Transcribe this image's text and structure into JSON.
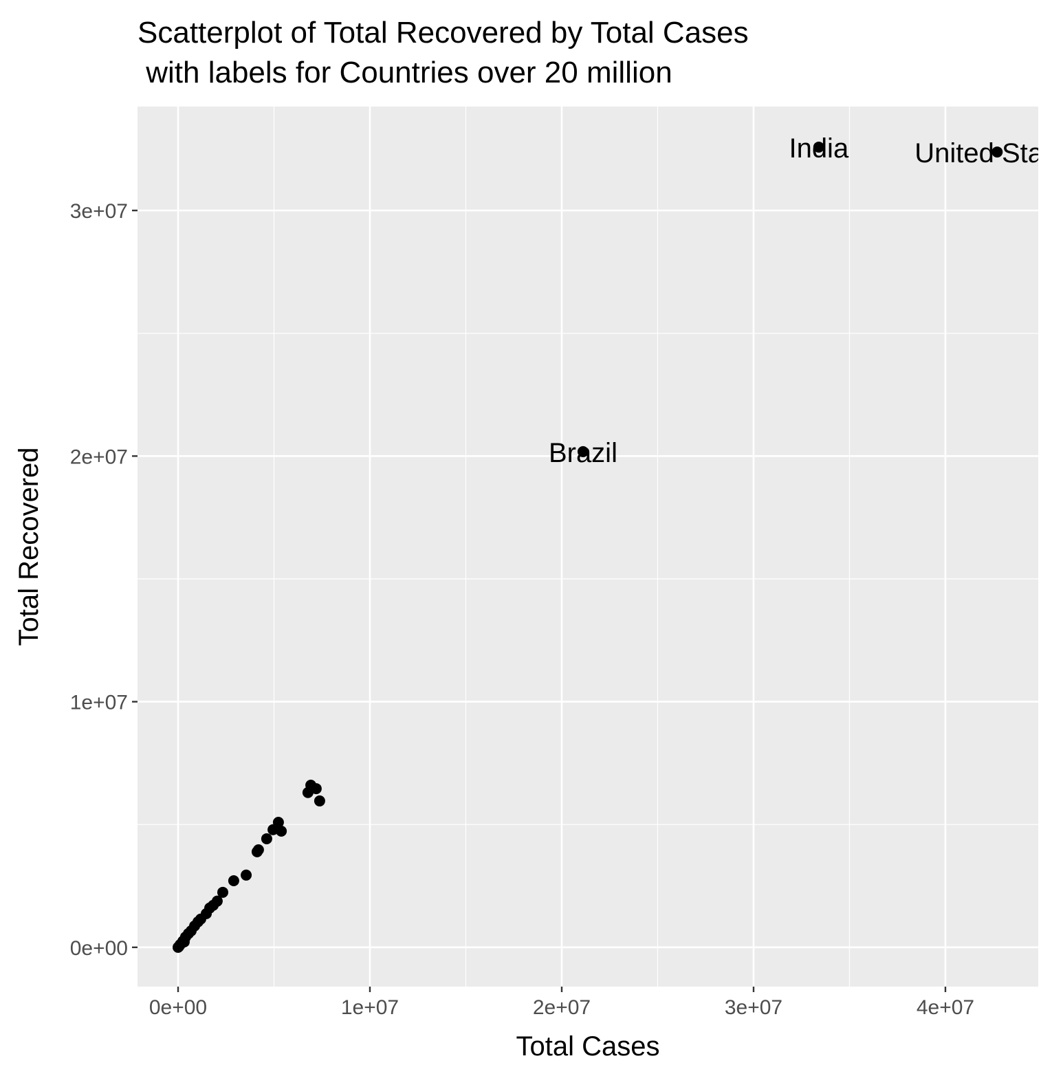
{
  "chart_data": {
    "type": "scatter",
    "title_lines": [
      "Scatterplot of Total Recovered by Total Cases",
      " with labels for Countries over 20 million"
    ],
    "x_label": "Total Cases",
    "y_label": "Total Recovered",
    "color": "#000000",
    "grid": true,
    "xlim": [
      -2115000,
      44840000
    ],
    "ylim": [
      -1600000,
      34230000
    ],
    "xticks": [
      {
        "value": 0,
        "label": "0e+00"
      },
      {
        "value": 10000000,
        "label": "1e+07"
      },
      {
        "value": 20000000,
        "label": "2e+07"
      },
      {
        "value": 30000000,
        "label": "3e+07"
      },
      {
        "value": 40000000,
        "label": "4e+07"
      }
    ],
    "yticks": [
      {
        "value": 0,
        "label": "0e+00"
      },
      {
        "value": 10000000,
        "label": "1e+07"
      },
      {
        "value": 20000000,
        "label": "2e+07"
      },
      {
        "value": 30000000,
        "label": "3e+07"
      }
    ],
    "xminor": [
      5000000,
      15000000,
      25000000,
      35000000
    ],
    "yminor": [
      5000000,
      15000000,
      25000000
    ],
    "x": [
      33400000,
      42700000,
      21110000,
      7380000,
      7200000,
      6920000,
      6770000,
      5380000,
      5230000,
      4950000,
      4620000,
      4190000,
      4120000,
      3550000,
      2900000,
      2330000,
      2040000,
      1830000,
      1650000,
      1470000,
      1180000,
      1040000,
      860000,
      680000,
      540000,
      390000,
      320000,
      250000,
      110000,
      40000,
      0
    ],
    "y": [
      32580000,
      32380000,
      20180000,
      5960000,
      6460000,
      6600000,
      6300000,
      4730000,
      5090000,
      4790000,
      4420000,
      3970000,
      3890000,
      2940000,
      2710000,
      2240000,
      1880000,
      1710000,
      1600000,
      1370000,
      1150000,
      1040000,
      870000,
      670000,
      560000,
      420000,
      220000,
      250000,
      110000,
      30000,
      0
    ],
    "point_labels": [
      "India",
      "United States",
      "Brazil",
      null,
      null,
      null,
      null,
      null,
      null,
      null,
      null,
      null,
      null,
      null,
      null,
      null,
      null,
      null,
      null,
      null,
      null,
      null,
      null,
      null,
      null,
      null,
      null,
      null,
      null,
      null,
      null
    ]
  }
}
